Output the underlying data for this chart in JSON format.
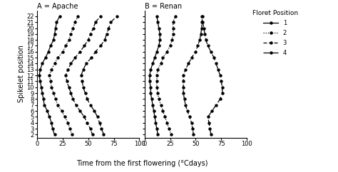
{
  "title_A": "A = Apache",
  "title_B": "B = Renan",
  "xlabel": "Time from the first flowering (°Cdays)",
  "ylabel": "Spikelet position",
  "yticks": [
    2,
    3,
    4,
    5,
    6,
    7,
    8,
    9,
    10,
    11,
    12,
    13,
    14,
    15,
    16,
    17,
    18,
    19,
    20,
    21,
    22
  ],
  "xticks": [
    0,
    25,
    50,
    75,
    100
  ],
  "legend_title": "Floret Position",
  "legend_entries": [
    "1",
    "2",
    "3",
    "4"
  ],
  "A_f1_y": [
    2,
    3,
    4,
    5,
    6,
    7,
    8,
    9,
    10,
    11,
    12,
    13,
    14,
    15,
    16,
    17,
    18,
    19,
    20,
    21,
    22
  ],
  "A_f1_x": [
    17,
    15,
    14,
    12,
    10,
    7,
    6,
    5,
    4,
    3,
    2,
    3,
    5,
    8,
    11,
    13,
    16,
    17,
    18,
    19,
    22
  ],
  "A_f2_y": [
    2,
    3,
    4,
    5,
    6,
    7,
    8,
    9,
    10,
    11,
    12,
    13,
    14,
    15,
    16,
    17,
    18,
    19,
    20,
    21,
    22
  ],
  "A_f2_x": [
    34,
    32,
    30,
    27,
    24,
    20,
    18,
    16,
    14,
    13,
    12,
    14,
    17,
    20,
    25,
    28,
    31,
    33,
    35,
    37,
    40
  ],
  "A_f3_y": [
    2,
    3,
    4,
    5,
    6,
    7,
    8,
    9,
    10,
    11,
    12,
    13,
    14,
    15,
    16,
    17,
    18,
    19,
    20,
    21,
    22
  ],
  "A_f3_x": [
    54,
    52,
    49,
    46,
    42,
    38,
    35,
    33,
    31,
    29,
    28,
    30,
    33,
    37,
    42,
    46,
    50,
    52,
    55,
    57,
    62
  ],
  "A_f4_y": [
    2,
    3,
    4,
    5,
    6,
    7,
    8,
    9,
    10,
    11,
    12,
    13,
    14,
    15,
    16,
    17,
    18,
    19,
    20,
    21,
    22
  ],
  "A_f4_x": [
    65,
    63,
    61,
    59,
    56,
    52,
    49,
    47,
    45,
    44,
    43,
    45,
    48,
    53,
    57,
    62,
    66,
    68,
    70,
    72,
    78
  ],
  "B_f1_y": [
    2,
    3,
    4,
    5,
    6,
    7,
    8,
    9,
    10,
    11,
    12,
    13,
    14,
    15,
    16,
    17,
    18,
    19,
    20,
    21,
    22
  ],
  "B_f1_x": [
    13,
    12,
    11,
    10,
    9,
    8,
    7,
    6,
    6,
    5,
    5,
    6,
    8,
    10,
    12,
    14,
    15,
    15,
    14,
    13,
    12
  ],
  "B_f2_y": [
    2,
    3,
    4,
    5,
    6,
    7,
    8,
    9,
    10,
    11,
    12,
    13,
    14,
    15,
    16,
    17,
    18,
    19,
    20,
    21,
    22
  ],
  "B_f2_x": [
    26,
    24,
    22,
    20,
    18,
    16,
    14,
    13,
    12,
    12,
    12,
    13,
    16,
    18,
    22,
    25,
    27,
    28,
    28,
    28,
    30
  ],
  "B_f3_y": [
    2,
    3,
    4,
    5,
    6,
    7,
    8,
    9,
    10,
    11,
    12,
    13,
    14,
    15,
    16,
    17,
    18,
    19,
    20,
    21,
    22
  ],
  "B_f3_x": [
    48,
    47,
    46,
    44,
    42,
    40,
    39,
    38,
    38,
    38,
    38,
    40,
    43,
    46,
    50,
    52,
    54,
    55,
    56,
    56,
    57
  ],
  "B_f4_y": [
    2,
    3,
    4,
    5,
    6,
    7,
    8,
    9,
    10,
    11,
    12,
    13,
    14,
    15,
    16,
    17,
    18,
    19,
    20,
    21,
    22
  ],
  "B_f4_x": [
    65,
    64,
    63,
    62,
    66,
    70,
    74,
    76,
    76,
    75,
    74,
    72,
    70,
    68,
    65,
    62,
    60,
    59,
    58,
    57,
    56
  ]
}
